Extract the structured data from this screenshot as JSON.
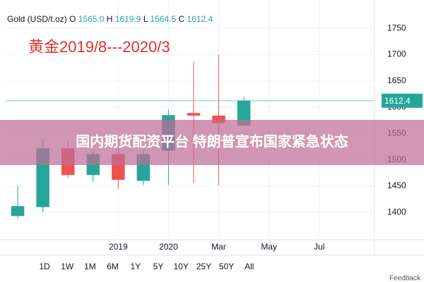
{
  "chart_data": {
    "type": "candlestick",
    "symbol": "Gold (USD/t.oz)",
    "ohlc_legend": {
      "labels": [
        "O",
        "H",
        "L",
        "C"
      ],
      "values": [
        1565.0,
        1619.9,
        1564.5,
        1612.4
      ],
      "value_labels": [
        "1565.0",
        "1619.9",
        "1564.5",
        "1612.4"
      ]
    },
    "annotation": "黄金2019/8---2020/3",
    "x": [
      0,
      1,
      2,
      3,
      4,
      5,
      6,
      7,
      8,
      9
    ],
    "open": [
      1393,
      1410,
      1522,
      1471,
      1511,
      1460,
      1517,
      1589,
      1584,
      1565.0
    ],
    "high": [
      1451,
      1542,
      1536,
      1519,
      1522,
      1519,
      1596,
      1687,
      1700,
      1619.9
    ],
    "low": [
      1388,
      1400,
      1466,
      1458,
      1444,
      1452,
      1452,
      1455,
      1451,
      1564.5
    ],
    "close": [
      1412,
      1522,
      1471,
      1511,
      1462,
      1511,
      1585,
      1584,
      1570,
      1612.4
    ],
    "up_color": "#26a69a",
    "down_color": "#ef5350",
    "xlim": [
      -0.48,
      14.2
    ],
    "xticks": [
      {
        "value": 4,
        "label": "2019"
      },
      {
        "value": 6,
        "label": "2020"
      },
      {
        "value": 8,
        "label": "Mar"
      },
      {
        "value": 10,
        "label": "May"
      },
      {
        "value": 12,
        "label": "Jul"
      }
    ],
    "ylim": [
      1348,
      1804
    ],
    "yticks": [
      1400,
      1450,
      1500,
      1550,
      1600,
      1650,
      1700,
      1750
    ],
    "grid": true,
    "last_price": {
      "value": 1612.4,
      "label": "1612.4"
    }
  },
  "overlay_banner": "国内期货配资平台 特朗普宣布国家紧急状态",
  "range_buttons": [
    "1D",
    "1W",
    "1M",
    "6M",
    "1Y",
    "5Y",
    "10Y",
    "25Y",
    "50Y",
    "All"
  ],
  "footer": "Feedback"
}
